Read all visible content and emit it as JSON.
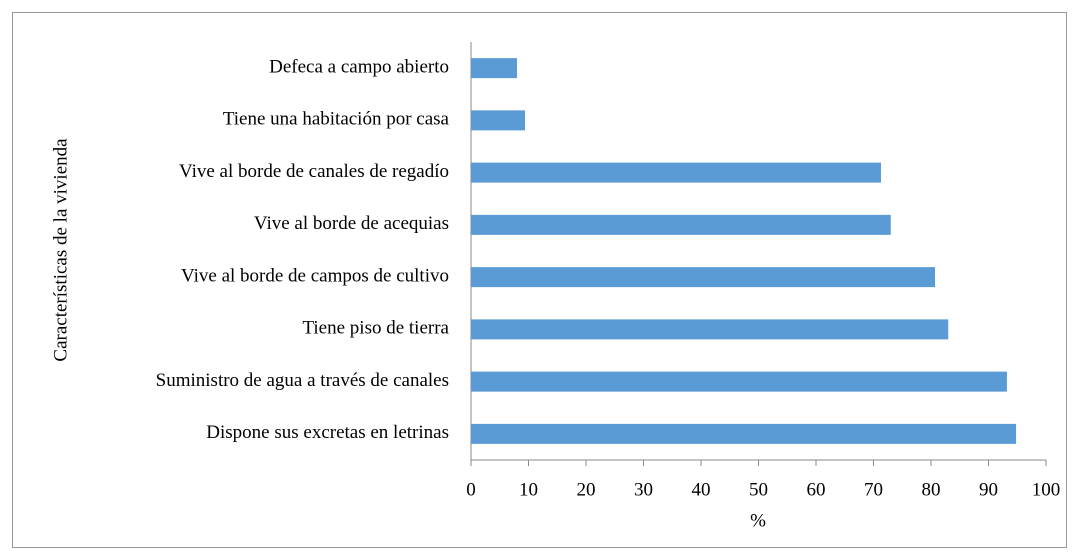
{
  "chart_data": {
    "type": "barh",
    "categories": [
      "Defeca a campo abierto",
      "Tiene una habitación por casa",
      "Vive al borde de canales de regadío",
      "Vive al borde de acequias",
      "Vive al borde de campos de cultivo",
      "Tiene piso de tierra",
      "Suministro de agua a través de canales",
      "Dispone sus excretas en letrinas"
    ],
    "values": [
      8,
      9.4,
      71.3,
      73,
      80.7,
      83,
      93.2,
      94.8
    ],
    "color": "#5b9bd5",
    "xlabel": "%",
    "ylabel": "Características de la vivienda",
    "xlim": [
      0,
      100
    ],
    "xticks": [
      0,
      10,
      20,
      30,
      40,
      50,
      60,
      70,
      80,
      90,
      100
    ],
    "grid": false
  }
}
